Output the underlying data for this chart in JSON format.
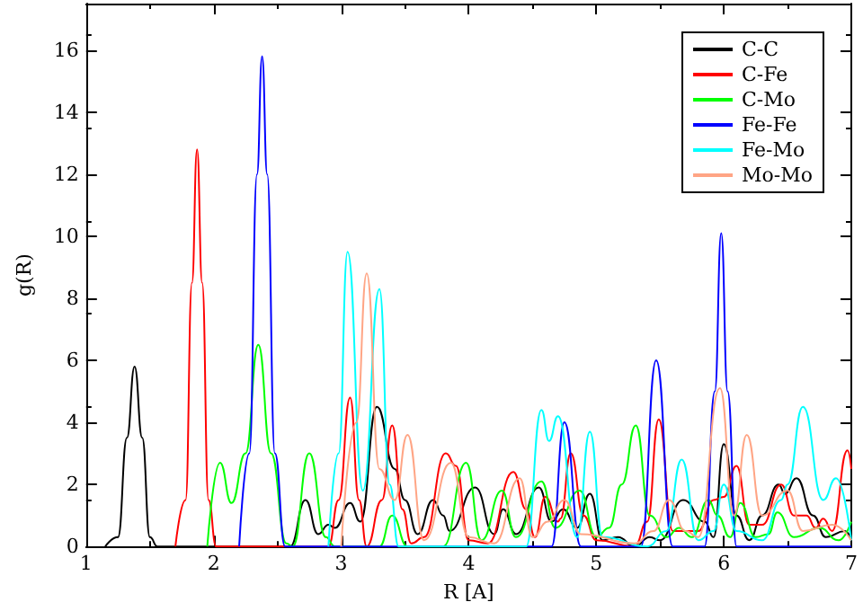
{
  "chart_data": {
    "type": "line",
    "xlabel": "R [A]",
    "ylabel": "g(R)",
    "xlim": [
      1,
      7
    ],
    "xticks": [
      1,
      2,
      3,
      4,
      5,
      6,
      7
    ],
    "ylim": [
      0,
      17.5
    ],
    "yticks": [
      0,
      2,
      4,
      6,
      8,
      10,
      12,
      14,
      16
    ],
    "legend": "top right",
    "series": [
      {
        "name": "C-C",
        "color": "#000000",
        "x": [
          1.15,
          1.25,
          1.32,
          1.38,
          1.44,
          1.5,
          1.56,
          2.6,
          2.72,
          2.82,
          2.9,
          2.95,
          3.07,
          3.15,
          3.28,
          3.42,
          3.5,
          3.6,
          3.72,
          3.8,
          3.85,
          4.05,
          4.2,
          4.27,
          4.37,
          4.55,
          4.65,
          4.74,
          4.85,
          4.95,
          5.05,
          5.17,
          5.3,
          5.42,
          5.5,
          5.68,
          5.85,
          5.92,
          6.0,
          6.1,
          6.2,
          6.3,
          6.43,
          6.48,
          6.57,
          6.7,
          6.8,
          6.95,
          7.0
        ],
        "values": [
          0,
          0.3,
          3.5,
          5.8,
          3.5,
          0.3,
          0,
          0,
          1.5,
          0.4,
          0.7,
          0.6,
          1.4,
          0.8,
          4.5,
          2.5,
          1.5,
          0.4,
          1.5,
          1.0,
          0.5,
          1.9,
          0.4,
          1.2,
          0.4,
          1.9,
          0.8,
          1.2,
          0.6,
          1.7,
          0.2,
          0.3,
          0,
          0.3,
          0.2,
          1.5,
          0.8,
          0.3,
          3.3,
          1.0,
          0.2,
          1.0,
          2.0,
          1.7,
          2.2,
          1.0,
          0.3,
          0.5,
          0.2
        ]
      },
      {
        "name": "C-Fe",
        "color": "#ff0000",
        "x": [
          1.7,
          1.78,
          1.83,
          1.87,
          1.91,
          1.96,
          2.02,
          2.9,
          2.98,
          3.07,
          3.14,
          3.2,
          3.32,
          3.4,
          3.48,
          3.55,
          3.65,
          3.82,
          3.9,
          4.0,
          4.15,
          4.35,
          4.45,
          4.52,
          4.6,
          4.7,
          4.72,
          4.8,
          4.9,
          5.0,
          5.3,
          5.4,
          5.49,
          5.6,
          5.8,
          5.92,
          6.0,
          6.1,
          6.2,
          6.3,
          6.45,
          6.55,
          6.65,
          6.72,
          6.78,
          6.85,
          6.97,
          7.0
        ],
        "values": [
          0,
          1.5,
          8.5,
          12.8,
          8.5,
          1.5,
          0,
          0,
          1.5,
          4.8,
          1.5,
          0,
          1.5,
          3.9,
          1.2,
          0.1,
          0.3,
          3.0,
          2.6,
          0.2,
          0.1,
          2.4,
          1.2,
          0.3,
          1.6,
          0.8,
          0.9,
          3.0,
          1.0,
          0.2,
          0,
          0.8,
          4.1,
          0.5,
          0.5,
          1.5,
          1.6,
          2.6,
          0.7,
          0.7,
          2.0,
          1.0,
          1.0,
          0.6,
          0.9,
          0.5,
          3.1,
          2.5
        ]
      },
      {
        "name": "C-Mo",
        "color": "#00ff00",
        "x": [
          1.95,
          2.05,
          2.14,
          2.25,
          2.35,
          2.45,
          2.57,
          2.62,
          2.75,
          2.88,
          2.95,
          3.3,
          3.4,
          3.52,
          3.8,
          3.98,
          4.1,
          4.26,
          4.37,
          4.57,
          4.68,
          4.87,
          5.0,
          5.1,
          5.2,
          5.31,
          5.42,
          5.55,
          5.65,
          5.75,
          5.88,
          5.95,
          6.05,
          6.13,
          6.25,
          6.35,
          6.42,
          6.55,
          6.75,
          6.9,
          7.0
        ],
        "values": [
          0,
          2.7,
          1.4,
          3.0,
          6.5,
          3.0,
          0.1,
          0,
          3.0,
          0.3,
          0,
          0,
          1.0,
          0,
          0,
          2.7,
          0.2,
          1.8,
          0.3,
          2.1,
          0.6,
          1.8,
          0.3,
          0.6,
          2.0,
          3.9,
          1.0,
          0.3,
          0.6,
          0.3,
          1.5,
          1.0,
          0.3,
          1.4,
          0.3,
          0.4,
          1.1,
          0.3,
          0.6,
          0.2,
          0.8
        ]
      },
      {
        "name": "Fe-Fe",
        "color": "#0000ff",
        "x": [
          2.2,
          2.28,
          2.34,
          2.38,
          2.42,
          2.48,
          2.56,
          4.65,
          4.75,
          4.88,
          5.35,
          5.47,
          5.6,
          5.85,
          5.93,
          5.98,
          6.03,
          6.1,
          7.0
        ],
        "values": [
          0,
          3.0,
          12.0,
          15.8,
          12.0,
          3.0,
          0,
          0,
          4.0,
          0,
          0,
          6.0,
          0,
          0,
          5.0,
          10.1,
          5.0,
          0,
          0
        ]
      },
      {
        "name": "Fe-Mo",
        "color": "#00ffff",
        "x": [
          2.9,
          2.98,
          3.05,
          3.17,
          3.3,
          3.38,
          3.45,
          4.45,
          4.57,
          4.63,
          4.7,
          4.85,
          4.95,
          5.05,
          5.4,
          5.55,
          5.67,
          5.8,
          5.92,
          6.0,
          6.1,
          6.3,
          6.45,
          6.5,
          6.62,
          6.78,
          6.88,
          7.0
        ],
        "values": [
          0,
          3.0,
          9.5,
          1.8,
          8.3,
          2.0,
          0,
          0,
          4.4,
          3.4,
          4.2,
          0.3,
          3.7,
          0.3,
          0,
          0.5,
          2.8,
          0.2,
          0.5,
          2.0,
          0.5,
          0.2,
          1.5,
          2.0,
          4.5,
          1.5,
          2.2,
          0.2
        ]
      },
      {
        "name": "Mo-Mo",
        "color": "#ffa585",
        "x": [
          3.0,
          3.12,
          3.2,
          3.3,
          3.42,
          3.52,
          3.65,
          3.86,
          4.0,
          4.2,
          4.4,
          4.5,
          4.62,
          4.75,
          4.88,
          5.3,
          5.45,
          5.57,
          5.7,
          5.8,
          5.97,
          6.08,
          6.18,
          6.3,
          6.5,
          6.62,
          6.85,
          7.0
        ],
        "values": [
          0,
          4.0,
          8.8,
          2.5,
          1.5,
          3.6,
          0.2,
          2.7,
          0.3,
          0.1,
          2.2,
          0.3,
          0.8,
          1.5,
          0.4,
          0.1,
          0.5,
          1.5,
          0.5,
          0.3,
          5.1,
          1.0,
          3.6,
          1.0,
          1.8,
          0.5,
          0.7,
          0.2
        ]
      }
    ]
  }
}
